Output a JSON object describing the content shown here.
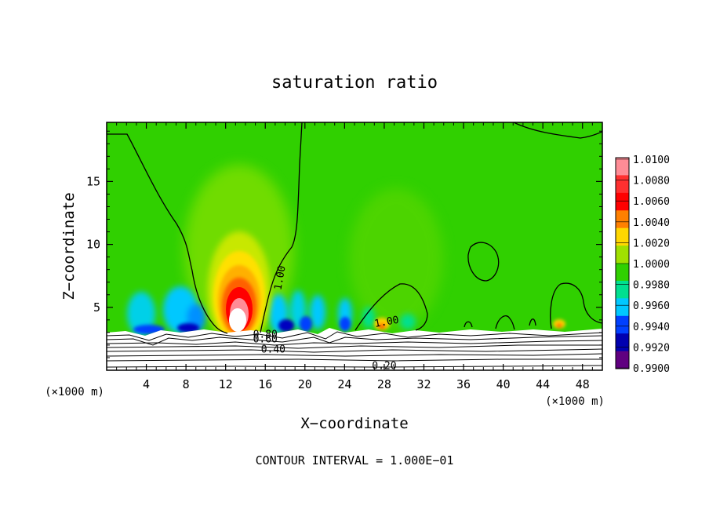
{
  "chart_data": {
    "type": "heatmap",
    "title": "saturation ratio",
    "xlabel": "X−coordinate",
    "ylabel": "Z−coordinate",
    "x_unit_left": "(×1000 m)",
    "x_unit_right": "(×1000 m)",
    "xlim": [
      0,
      50
    ],
    "ylim": [
      0,
      19.7
    ],
    "x_ticks": [
      "4",
      "8",
      "12",
      "16",
      "20",
      "24",
      "28",
      "32",
      "36",
      "40",
      "44",
      "48"
    ],
    "x_tick_values": [
      4,
      8,
      12,
      16,
      20,
      24,
      28,
      32,
      36,
      40,
      44,
      48
    ],
    "y_ticks": [
      "5",
      "10",
      "15"
    ],
    "y_tick_values": [
      5,
      10,
      15
    ],
    "colorbar": {
      "levels": [
        "1.0100",
        "1.0080",
        "1.0060",
        "1.0040",
        "1.0020",
        "1.0000",
        "0.9980",
        "0.9960",
        "0.9940",
        "0.9920",
        "0.9900"
      ],
      "colors": [
        "#ff8c96",
        "#ff3030",
        "#ff0000",
        "#ff8000",
        "#ffd700",
        "#a0e000",
        "#30d000",
        "#00e090",
        "#00c8ff",
        "#0040ff",
        "#0000b0",
        "#600080"
      ]
    },
    "background_value": "1.0000",
    "contour_labels": [
      {
        "text": "1.00",
        "x": 17.8,
        "z": 7.3,
        "angle": -80
      },
      {
        "text": "1.00",
        "x": 28.3,
        "z": 3.6,
        "angle": -10
      },
      {
        "text": "0.80",
        "x": 16.0,
        "z": 2.6,
        "angle": 0
      },
      {
        "text": "0.60",
        "x": 16.0,
        "z": 2.2,
        "angle": 0
      },
      {
        "text": "0.40",
        "x": 16.8,
        "z": 1.4,
        "angle": 0
      },
      {
        "text": "0.20",
        "x": 28.0,
        "z": 0.1,
        "angle": 0
      }
    ],
    "features": [
      {
        "name": "updraft-plume-max",
        "x": 13.5,
        "z": 5.0,
        "value": 1.01
      },
      {
        "name": "subsaturated-band",
        "x": 18.0,
        "z": 3.6,
        "value": 0.992
      },
      {
        "name": "cloud-top-contour",
        "x": 28.0,
        "z": 4.5,
        "value": 1.0
      }
    ],
    "contour_interval": "CONTOUR INTERVAL = 1.000E−01"
  }
}
